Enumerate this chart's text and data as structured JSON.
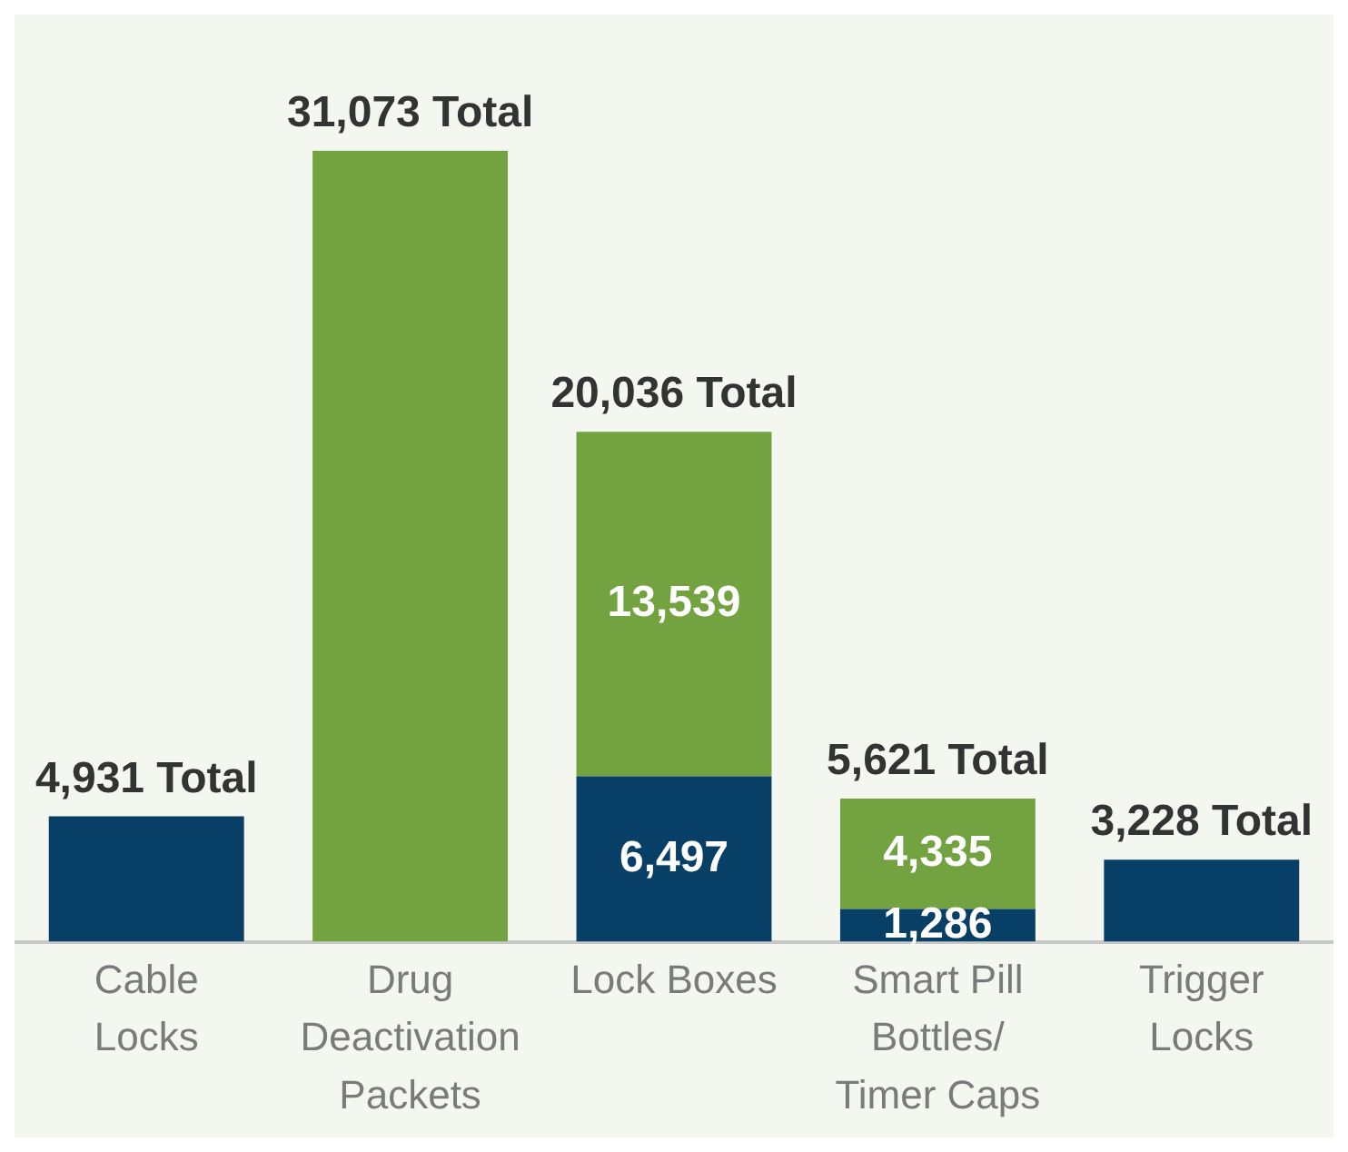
{
  "chart_data": {
    "type": "bar",
    "stacked": true,
    "legend": false,
    "grid": false,
    "categories": [
      "Cable Locks",
      "Drug Deactivation Packets",
      "Lock Boxes",
      "Smart Pill Bottles/ Timer Caps",
      "Trigger Locks"
    ],
    "series": [
      {
        "color": "#073f66",
        "values": [
          4931,
          null,
          6497,
          1286,
          3228
        ],
        "value_labels": [
          null,
          null,
          "6,497",
          "1,286",
          null
        ]
      },
      {
        "color": "#73a241",
        "values": [
          null,
          31073,
          13539,
          4335,
          null
        ],
        "value_labels": [
          null,
          null,
          "13,539",
          "4,335",
          null
        ]
      }
    ],
    "totals": [
      "4,931 Total",
      "31,073 Total",
      "20,036 Total",
      "5,621 Total",
      "3,228 Total"
    ]
  }
}
